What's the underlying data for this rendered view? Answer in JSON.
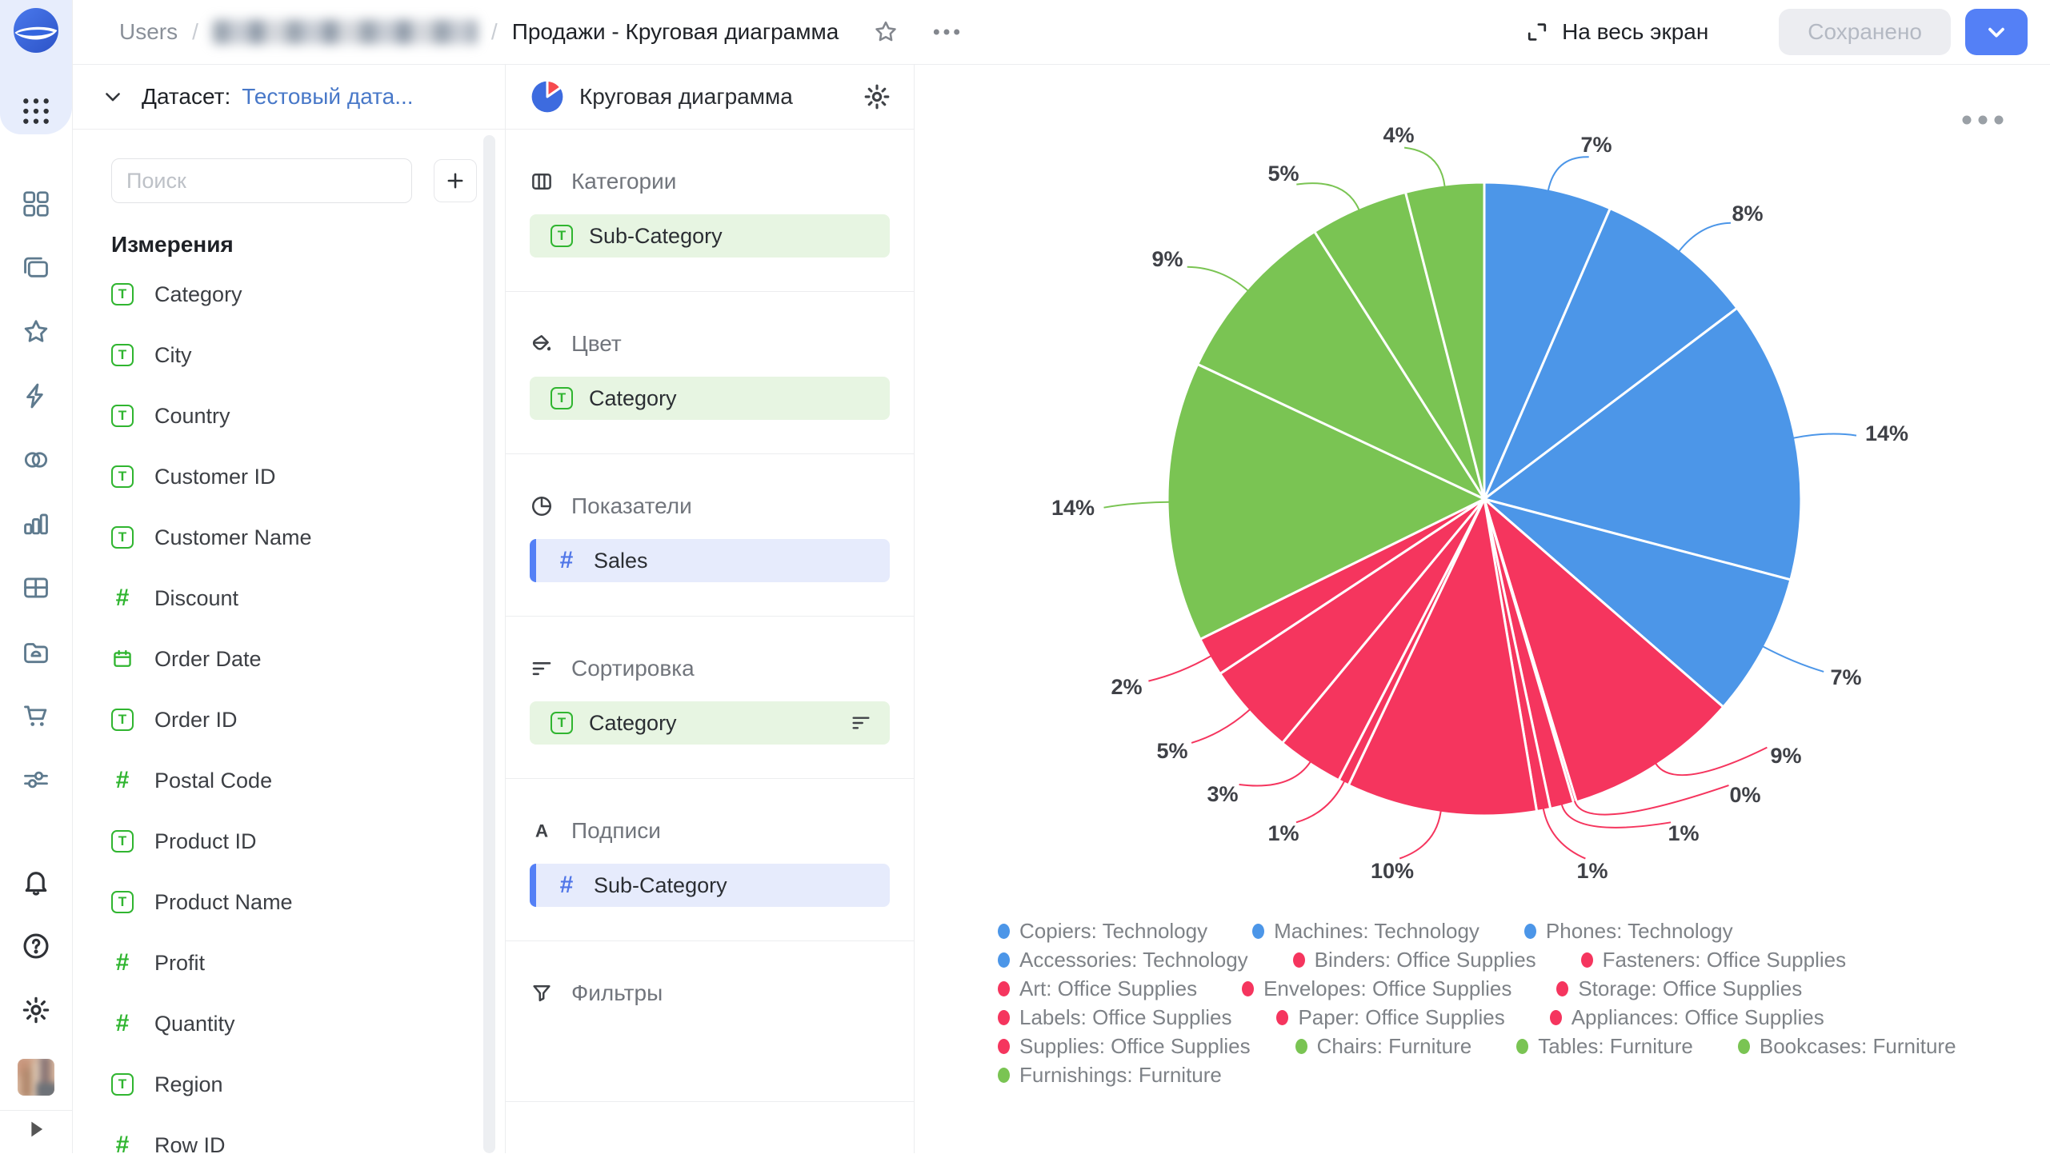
{
  "topbar": {
    "breadcrumb": {
      "root": "Users",
      "separator": "/",
      "masked": true,
      "current": "Продажи - Круговая диаграмма"
    },
    "fullscreen_label": "На весь экран",
    "saved_label": "Сохранено",
    "accent_color": "#5480F6"
  },
  "left_rail": {
    "top_icons": [
      "datalens-logo",
      "apps-grid-icon"
    ],
    "middle_icons": [
      "widgets-icon",
      "collections-icon",
      "star-icon",
      "lightning-icon",
      "linked-circles-icon",
      "bar-chart-icon",
      "table-icon",
      "folder-icon",
      "cart-icon",
      "sliders-icon"
    ],
    "bottom_icons": [
      "bell-icon",
      "help-icon",
      "gear-icon"
    ],
    "expand_icon": "play-icon"
  },
  "dataset_panel": {
    "header_label": "Датасет:",
    "dataset_name": "Тестовый дата...",
    "search_placeholder": "Поиск",
    "add_button": "plus-icon",
    "dimensions_title": "Измерения",
    "fields": [
      {
        "name": "Category",
        "type": "string"
      },
      {
        "name": "City",
        "type": "string"
      },
      {
        "name": "Country",
        "type": "string"
      },
      {
        "name": "Customer ID",
        "type": "string"
      },
      {
        "name": "Customer Name",
        "type": "string"
      },
      {
        "name": "Discount",
        "type": "number"
      },
      {
        "name": "Order Date",
        "type": "date"
      },
      {
        "name": "Order ID",
        "type": "string"
      },
      {
        "name": "Postal Code",
        "type": "number"
      },
      {
        "name": "Product ID",
        "type": "string"
      },
      {
        "name": "Product Name",
        "type": "string"
      },
      {
        "name": "Profit",
        "type": "number"
      },
      {
        "name": "Quantity",
        "type": "number"
      },
      {
        "name": "Region",
        "type": "string"
      },
      {
        "name": "Row ID",
        "type": "number"
      }
    ]
  },
  "config_panel": {
    "title": "Круговая диаграмма",
    "sections": [
      {
        "id": "categories",
        "icon": "columns-icon",
        "title": "Категории",
        "chips": [
          {
            "label": "Sub-Category",
            "field_type": "dimension"
          }
        ]
      },
      {
        "id": "color",
        "icon": "paint-bucket-icon",
        "title": "Цвет",
        "chips": [
          {
            "label": "Category",
            "field_type": "dimension"
          }
        ]
      },
      {
        "id": "measures",
        "icon": "pie-quarter-icon",
        "title": "Показатели",
        "chips": [
          {
            "label": "Sales",
            "field_type": "measure"
          }
        ]
      },
      {
        "id": "sort",
        "icon": "sort-icon",
        "title": "Сортировка",
        "chips": [
          {
            "label": "Category",
            "field_type": "dimension",
            "trailing_icon": "sort-icon"
          }
        ]
      },
      {
        "id": "labels",
        "icon": "letter-a-icon",
        "title": "Подписи",
        "chips": [
          {
            "label": "Sub-Category",
            "field_type": "measure"
          }
        ]
      },
      {
        "id": "filters",
        "icon": "funnel-icon",
        "title": "Фильтры",
        "chips": []
      }
    ]
  },
  "chart_data": {
    "type": "pie",
    "measure": "Sales",
    "dimension": "Sub-Category",
    "color_by": "Category",
    "labels_format": "percent",
    "legend_position": "bottom",
    "category_colors": {
      "Technology": "#4C96E8",
      "Office Supplies": "#F5355E",
      "Furniture": "#7AC453"
    },
    "slices": [
      {
        "name": "Copiers",
        "category": "Technology",
        "percent": 6.5,
        "label": "7%"
      },
      {
        "name": "Machines",
        "category": "Technology",
        "percent": 8.2,
        "label": "8%"
      },
      {
        "name": "Phones",
        "category": "Technology",
        "percent": 14.4,
        "label": "14%"
      },
      {
        "name": "Accessories",
        "category": "Technology",
        "percent": 7.3,
        "label": "7%"
      },
      {
        "name": "Binders",
        "category": "Office Supplies",
        "percent": 8.9,
        "label": "9%"
      },
      {
        "name": "Fasteners",
        "category": "Office Supplies",
        "percent": 0.15,
        "label": "0%"
      },
      {
        "name": "Art",
        "category": "Office Supplies",
        "percent": 1.2,
        "label": "1%"
      },
      {
        "name": "Envelopes",
        "category": "Office Supplies",
        "percent": 0.7,
        "label": "1%"
      },
      {
        "name": "Storage",
        "category": "Office Supplies",
        "percent": 9.7,
        "label": "10%"
      },
      {
        "name": "Labels",
        "category": "Office Supplies",
        "percent": 0.55,
        "label": "1%"
      },
      {
        "name": "Paper",
        "category": "Office Supplies",
        "percent": 3.4,
        "label": "3%"
      },
      {
        "name": "Appliances",
        "category": "Office Supplies",
        "percent": 4.7,
        "label": "5%"
      },
      {
        "name": "Supplies",
        "category": "Office Supplies",
        "percent": 2.0,
        "label": "2%"
      },
      {
        "name": "Chairs",
        "category": "Furniture",
        "percent": 14.3,
        "label": "14%"
      },
      {
        "name": "Tables",
        "category": "Furniture",
        "percent": 9.0,
        "label": "9%"
      },
      {
        "name": "Bookcases",
        "category": "Furniture",
        "percent": 5.0,
        "label": "5%"
      },
      {
        "name": "Furnishings",
        "category": "Furniture",
        "percent": 4.0,
        "label": "4%"
      }
    ]
  }
}
